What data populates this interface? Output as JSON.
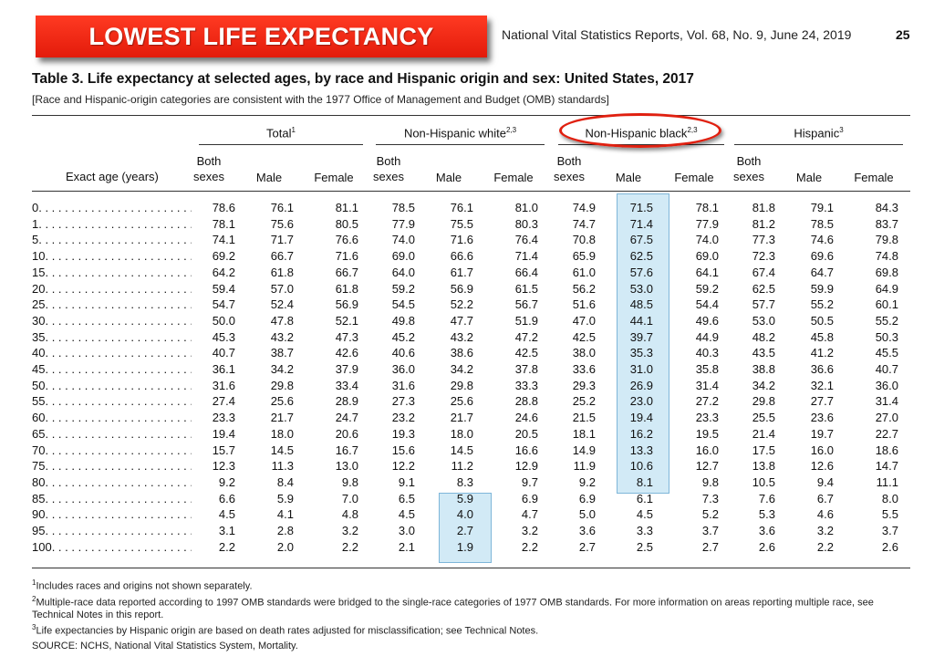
{
  "banner": "LOWEST LIFE EXPECTANCY",
  "report_header": "National Vital Statistics Reports, Vol. 68, No. 9, June 24, 2019",
  "page_number": "25",
  "table_title": "Table 3. Life expectancy at selected ages, by race and Hispanic origin and sex: United States, 2017",
  "table_note": "[Race and Hispanic-origin categories are consistent with the 1977 Office of Management and Budget (OMB) standards]",
  "column_groups": [
    {
      "label": "Total",
      "sup": "1"
    },
    {
      "label": "Non-Hispanic white",
      "sup": "2,3"
    },
    {
      "label": "Non-Hispanic black",
      "sup": "2,3"
    },
    {
      "label": "Hispanic",
      "sup": "3"
    }
  ],
  "subheaders": [
    "Both sexes",
    "Male",
    "Female"
  ],
  "age_header": "Exact age (years)",
  "rows": [
    {
      "age": "0",
      "v": [
        "78.6",
        "76.1",
        "81.1",
        "78.5",
        "76.1",
        "81.0",
        "74.9",
        "71.5",
        "78.1",
        "81.8",
        "79.1",
        "84.3"
      ]
    },
    {
      "age": "1",
      "v": [
        "78.1",
        "75.6",
        "80.5",
        "77.9",
        "75.5",
        "80.3",
        "74.7",
        "71.4",
        "77.9",
        "81.2",
        "78.5",
        "83.7"
      ]
    },
    {
      "age": "5",
      "v": [
        "74.1",
        "71.7",
        "76.6",
        "74.0",
        "71.6",
        "76.4",
        "70.8",
        "67.5",
        "74.0",
        "77.3",
        "74.6",
        "79.8"
      ]
    },
    {
      "age": "10",
      "v": [
        "69.2",
        "66.7",
        "71.6",
        "69.0",
        "66.6",
        "71.4",
        "65.9",
        "62.5",
        "69.0",
        "72.3",
        "69.6",
        "74.8"
      ]
    },
    {
      "age": "15",
      "v": [
        "64.2",
        "61.8",
        "66.7",
        "64.0",
        "61.7",
        "66.4",
        "61.0",
        "57.6",
        "64.1",
        "67.4",
        "64.7",
        "69.8"
      ]
    },
    {
      "age": "20",
      "v": [
        "59.4",
        "57.0",
        "61.8",
        "59.2",
        "56.9",
        "61.5",
        "56.2",
        "53.0",
        "59.2",
        "62.5",
        "59.9",
        "64.9"
      ]
    },
    {
      "age": "25",
      "v": [
        "54.7",
        "52.4",
        "56.9",
        "54.5",
        "52.2",
        "56.7",
        "51.6",
        "48.5",
        "54.4",
        "57.7",
        "55.2",
        "60.1"
      ]
    },
    {
      "age": "30",
      "v": [
        "50.0",
        "47.8",
        "52.1",
        "49.8",
        "47.7",
        "51.9",
        "47.0",
        "44.1",
        "49.6",
        "53.0",
        "50.5",
        "55.2"
      ]
    },
    {
      "age": "35",
      "v": [
        "45.3",
        "43.2",
        "47.3",
        "45.2",
        "43.2",
        "47.2",
        "42.5",
        "39.7",
        "44.9",
        "48.2",
        "45.8",
        "50.3"
      ]
    },
    {
      "age": "40",
      "v": [
        "40.7",
        "38.7",
        "42.6",
        "40.6",
        "38.6",
        "42.5",
        "38.0",
        "35.3",
        "40.3",
        "43.5",
        "41.2",
        "45.5"
      ]
    },
    {
      "age": "45",
      "v": [
        "36.1",
        "34.2",
        "37.9",
        "36.0",
        "34.2",
        "37.8",
        "33.6",
        "31.0",
        "35.8",
        "38.8",
        "36.6",
        "40.7"
      ]
    },
    {
      "age": "50",
      "v": [
        "31.6",
        "29.8",
        "33.4",
        "31.6",
        "29.8",
        "33.3",
        "29.3",
        "26.9",
        "31.4",
        "34.2",
        "32.1",
        "36.0"
      ]
    },
    {
      "age": "55",
      "v": [
        "27.4",
        "25.6",
        "28.9",
        "27.3",
        "25.6",
        "28.8",
        "25.2",
        "23.0",
        "27.2",
        "29.8",
        "27.7",
        "31.4"
      ]
    },
    {
      "age": "60",
      "v": [
        "23.3",
        "21.7",
        "24.7",
        "23.2",
        "21.7",
        "24.6",
        "21.5",
        "19.4",
        "23.3",
        "25.5",
        "23.6",
        "27.0"
      ]
    },
    {
      "age": "65",
      "v": [
        "19.4",
        "18.0",
        "20.6",
        "19.3",
        "18.0",
        "20.5",
        "18.1",
        "16.2",
        "19.5",
        "21.4",
        "19.7",
        "22.7"
      ]
    },
    {
      "age": "70",
      "v": [
        "15.7",
        "14.5",
        "16.7",
        "15.6",
        "14.5",
        "16.6",
        "14.9",
        "13.3",
        "16.0",
        "17.5",
        "16.0",
        "18.6"
      ]
    },
    {
      "age": "75",
      "v": [
        "12.3",
        "11.3",
        "13.0",
        "12.2",
        "11.2",
        "12.9",
        "11.9",
        "10.6",
        "12.7",
        "13.8",
        "12.6",
        "14.7"
      ]
    },
    {
      "age": "80",
      "v": [
        "9.2",
        "8.4",
        "9.8",
        "9.1",
        "8.3",
        "9.7",
        "9.2",
        "8.1",
        "9.8",
        "10.5",
        "9.4",
        "11.1"
      ]
    },
    {
      "age": "85",
      "v": [
        "6.6",
        "5.9",
        "7.0",
        "6.5",
        "5.9",
        "6.9",
        "6.9",
        "6.1",
        "7.3",
        "7.6",
        "6.7",
        "8.0"
      ]
    },
    {
      "age": "90",
      "v": [
        "4.5",
        "4.1",
        "4.8",
        "4.5",
        "4.0",
        "4.7",
        "5.0",
        "4.5",
        "5.2",
        "5.3",
        "4.6",
        "5.5"
      ]
    },
    {
      "age": "95",
      "v": [
        "3.1",
        "2.8",
        "3.2",
        "3.0",
        "2.7",
        "3.2",
        "3.6",
        "3.3",
        "3.7",
        "3.6",
        "3.2",
        "3.7"
      ]
    },
    {
      "age": "100",
      "v": [
        "2.2",
        "2.0",
        "2.2",
        "2.1",
        "1.9",
        "2.2",
        "2.7",
        "2.5",
        "2.7",
        "2.6",
        "2.2",
        "2.6"
      ]
    }
  ],
  "footnotes": [
    {
      "sup": "1",
      "text": "Includes races and origins not shown separately."
    },
    {
      "sup": "2",
      "text": "Multiple-race data reported according to 1997 OMB standards were bridged to the single-race categories of 1977 OMB standards. For more information on areas reporting multiple race, see Technical Notes in this report."
    },
    {
      "sup": "3",
      "text": "Life expectancies by Hispanic origin are based on death rates adjusted for misclassification; see Technical Notes."
    }
  ],
  "source": "SOURCE: NCHS, National Vital Statistics System, Mortality.",
  "colors": {
    "banner": "#e62a14",
    "highlight": "#add8ee",
    "oval": "#e02010"
  }
}
